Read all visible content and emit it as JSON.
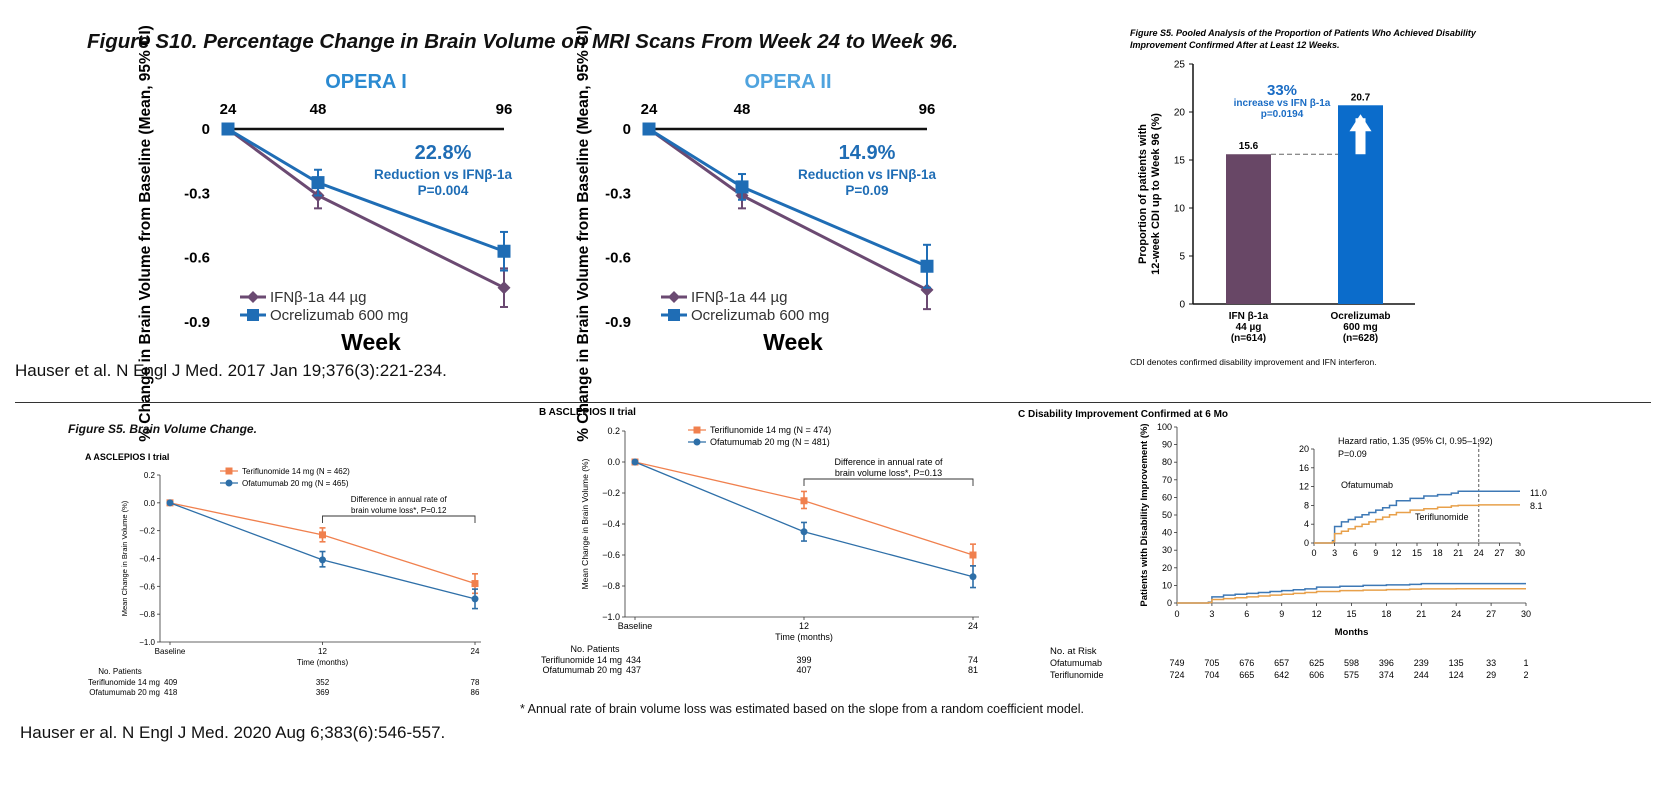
{
  "top": {
    "figure_s10_title": "Figure S10. Percentage Change in Brain Volume on MRI Scans From Week 24 to Week 96.",
    "reference": "Hauser et al. N Engl J Med. 2017 Jan 19;376(3):221-234."
  },
  "bottom": {
    "figure_s5_title": "Figure S5. Brain Volume Change.",
    "footnote": "* Annual rate of brain volume loss was estimated based on the slope from a random coefficient model.",
    "reference": "Hauser er al. N Engl J Med. 2020 Aug 6;383(6):546-557."
  },
  "chart_data": [
    {
      "id": "opera1",
      "type": "line",
      "title": "OPERA I",
      "xlabel": "Week",
      "ylabel": "% Change in Brain Volume from Baseline (Mean, 95% CI)",
      "x": [
        24,
        48,
        96
      ],
      "x_ticks": [
        "24",
        "48",
        "96"
      ],
      "y_ticks": [
        "0",
        "-0.3",
        "-0.6",
        "-0.9"
      ],
      "ylim": [
        -0.9,
        0
      ],
      "annotation": {
        "value": "22.8%",
        "line1": "Reduction vs IFNβ-1a",
        "line2": "P=0.004"
      },
      "series": [
        {
          "name": "IFNβ-1a 44 µg",
          "color": "#6b4a72",
          "marker": "diamond",
          "values": [
            0,
            -0.31,
            -0.74
          ],
          "ci": [
            [
              0,
              0
            ],
            [
              -0.37,
              -0.25
            ],
            [
              -0.83,
              -0.65
            ]
          ]
        },
        {
          "name": "Ocrelizumab 600 mg",
          "color": "#1f6db5",
          "marker": "square",
          "values": [
            0,
            -0.25,
            -0.57
          ],
          "ci": [
            [
              0,
              0
            ],
            [
              -0.31,
              -0.19
            ],
            [
              -0.66,
              -0.48
            ]
          ]
        }
      ]
    },
    {
      "id": "opera2",
      "type": "line",
      "title": "OPERA II",
      "xlabel": "Week",
      "ylabel": "% Change in Brain Volume from Baseline (Mean, 95% CI)",
      "x": [
        24,
        48,
        96
      ],
      "x_ticks": [
        "24",
        "48",
        "96"
      ],
      "y_ticks": [
        "0",
        "-0.3",
        "-0.6",
        "-0.9"
      ],
      "ylim": [
        -0.9,
        0
      ],
      "annotation": {
        "value": "14.9%",
        "line1": "Reduction vs IFNβ-1a",
        "line2": "P=0.09"
      },
      "series": [
        {
          "name": "IFNβ-1a 44 µg",
          "color": "#6b4a72",
          "marker": "diamond",
          "values": [
            0,
            -0.31,
            -0.75
          ],
          "ci": [
            [
              0,
              0
            ],
            [
              -0.37,
              -0.25
            ],
            [
              -0.84,
              -0.66
            ]
          ]
        },
        {
          "name": "Ocrelizumab 600 mg",
          "color": "#1f6db5",
          "marker": "square",
          "values": [
            0,
            -0.27,
            -0.64
          ],
          "ci": [
            [
              0,
              0
            ],
            [
              -0.33,
              -0.21
            ],
            [
              -0.74,
              -0.54
            ]
          ]
        }
      ]
    },
    {
      "id": "cdi_bar",
      "type": "bar",
      "title": "Figure S5. Pooled Analysis of the Proportion of Patients Who Achieved Disability Improvement Confirmed After at Least 12 Weeks.",
      "ylabel_line1": "Proportion of patients with",
      "ylabel_line2": "12-week CDI up to Week 96 (%)",
      "ylim": [
        0,
        25
      ],
      "y_ticks": [
        "0",
        "5",
        "10",
        "15",
        "20",
        "25"
      ],
      "categories": [
        {
          "line1": "IFN β-1a",
          "line2": "44 µg",
          "line3": "(n=614)"
        },
        {
          "line1": "Ocrelizumab",
          "line2": "600 mg",
          "line3": "(n=628)"
        }
      ],
      "values": [
        15.6,
        20.7
      ],
      "value_labels": [
        "15.6",
        "20.7"
      ],
      "colors": [
        "#684766",
        "#0b6ccb"
      ],
      "annotation": {
        "value": "33%",
        "line1": "increase vs IFN β-1a",
        "line2": "p=0.0194"
      },
      "footnote": "CDI denotes confirmed disability improvement and IFN interferon."
    },
    {
      "id": "asclepios1",
      "type": "line",
      "panel_label": "A  ASCLEPIOS I trial",
      "xlabel": "Time (months)",
      "ylabel": "Mean Change in Brain Volume (%)",
      "x": [
        0,
        12,
        24
      ],
      "x_ticks": [
        "Baseline",
        "12",
        "24"
      ],
      "y_ticks": [
        "0.2",
        "0.0",
        "−0.2",
        "−0.4",
        "−0.6",
        "−0.8",
        "−1.0"
      ],
      "ylim": [
        -1.0,
        0.2
      ],
      "bracket_line1": "Difference in annual rate of",
      "bracket_line2": "brain volume loss*, P=0.12",
      "series": [
        {
          "name": "Teriflunomide 14 mg (N = 462)",
          "color": "#f0804e",
          "marker": "square",
          "values": [
            0,
            -0.23,
            -0.58
          ],
          "ci": [
            [
              0,
              0
            ],
            [
              -0.28,
              -0.18
            ],
            [
              -0.65,
              -0.51
            ]
          ]
        },
        {
          "name": "Ofatumumab 20 mg (N = 465)",
          "color": "#2e6fa8",
          "marker": "circle",
          "values": [
            0,
            -0.41,
            -0.69
          ],
          "ci": [
            [
              0,
              0
            ],
            [
              -0.46,
              -0.35
            ],
            [
              -0.76,
              -0.62
            ]
          ]
        }
      ],
      "patients_header": "No. Patients",
      "patients": [
        {
          "name": "Teriflunomide 14 mg",
          "values": [
            "409",
            "352",
            "78"
          ]
        },
        {
          "name": "Ofatumumab 20 mg",
          "values": [
            "418",
            "369",
            "86"
          ]
        }
      ]
    },
    {
      "id": "asclepios2",
      "type": "line",
      "panel_label": "B  ASCLEPIOS II trial",
      "xlabel": "Time (months)",
      "ylabel": "Mean Change in Brain Volume (%)",
      "x": [
        0,
        12,
        24
      ],
      "x_ticks": [
        "Baseline",
        "12",
        "24"
      ],
      "y_ticks": [
        "0.2",
        "0.0",
        "−0.2",
        "−0.4",
        "−0.6",
        "−0.8",
        "−1.0"
      ],
      "ylim": [
        -1.0,
        0.2
      ],
      "bracket_line1": "Difference in annual rate of",
      "bracket_line2": "brain volume loss*, P=0.13",
      "series": [
        {
          "name": "Teriflunomide 14 mg (N = 474)",
          "color": "#f0804e",
          "marker": "square",
          "values": [
            0,
            -0.25,
            -0.6
          ],
          "ci": [
            [
              0,
              0
            ],
            [
              -0.3,
              -0.19
            ],
            [
              -0.67,
              -0.53
            ]
          ]
        },
        {
          "name": "Ofatumumab 20 mg (N = 481)",
          "color": "#2e6fa8",
          "marker": "circle",
          "values": [
            0,
            -0.45,
            -0.74
          ],
          "ci": [
            [
              0,
              0
            ],
            [
              -0.51,
              -0.39
            ],
            [
              -0.81,
              -0.67
            ]
          ]
        }
      ],
      "patients_header": "No. Patients",
      "patients": [
        {
          "name": "Teriflunomide 14 mg",
          "values": [
            "434",
            "399",
            "74"
          ]
        },
        {
          "name": "Ofatumumab 20 mg",
          "values": [
            "437",
            "407",
            "81"
          ]
        }
      ]
    },
    {
      "id": "km_cdi",
      "type": "line",
      "panel_label": "C  Disability Improvement Confirmed at 6 Mo",
      "xlabel": "Months",
      "ylabel": "Patients with Disability Improvement (%)",
      "x_ticks": [
        "0",
        "3",
        "6",
        "9",
        "12",
        "15",
        "18",
        "21",
        "24",
        "27",
        "30"
      ],
      "y_ticks": [
        "0",
        "10",
        "20",
        "30",
        "40",
        "50",
        "60",
        "70",
        "80",
        "90",
        "100"
      ],
      "xlim": [
        0,
        30
      ],
      "ylim": [
        0,
        100
      ],
      "inset": {
        "hazard_line1": "Hazard ratio, 1.35 (95% CI, 0.95–1.92)",
        "hazard_line2": "P=0.09",
        "y_ticks": [
          "0",
          "4",
          "8",
          "12",
          "16",
          "20"
        ],
        "ylim": [
          0,
          20
        ],
        "label_ofatumumab": "Ofatumumab",
        "label_teriflunomide": "Teriflunomide",
        "end_label_ofatumumab": "11.0",
        "end_label_teriflunomide": "8.1",
        "cutoff_month": 24
      },
      "series": [
        {
          "name": "Ofatumumab",
          "color": "#3d78b5",
          "x": [
            0,
            2.7,
            3,
            4,
            5,
            6,
            7,
            8,
            9,
            10,
            11,
            12,
            14,
            16,
            18,
            20,
            21,
            24,
            30
          ],
          "values": [
            0,
            0.5,
            3.5,
            4.5,
            5,
            5.5,
            6,
            6.5,
            7,
            7.5,
            8,
            9,
            9.5,
            10,
            10.3,
            10.6,
            11,
            11,
            11
          ]
        },
        {
          "name": "Teriflunomide",
          "color": "#e8a04a",
          "x": [
            0,
            2.7,
            3,
            4,
            5,
            6,
            7,
            8,
            9,
            10,
            11,
            12,
            14,
            16,
            18,
            20,
            21,
            24,
            30
          ],
          "values": [
            0,
            0.3,
            2,
            2.5,
            3,
            3.5,
            4,
            4.5,
            5,
            5.5,
            6,
            6.5,
            7,
            7.3,
            7.6,
            7.9,
            8,
            8.1,
            8.1
          ]
        }
      ],
      "risk_header": "No. at Risk",
      "risk": [
        {
          "name": "Ofatumumab",
          "values": [
            "749",
            "705",
            "676",
            "657",
            "625",
            "598",
            "396",
            "239",
            "135",
            "33",
            "1"
          ]
        },
        {
          "name": "Teriflunomide",
          "values": [
            "724",
            "704",
            "665",
            "642",
            "606",
            "575",
            "374",
            "244",
            "124",
            "29",
            "2"
          ]
        }
      ]
    }
  ]
}
